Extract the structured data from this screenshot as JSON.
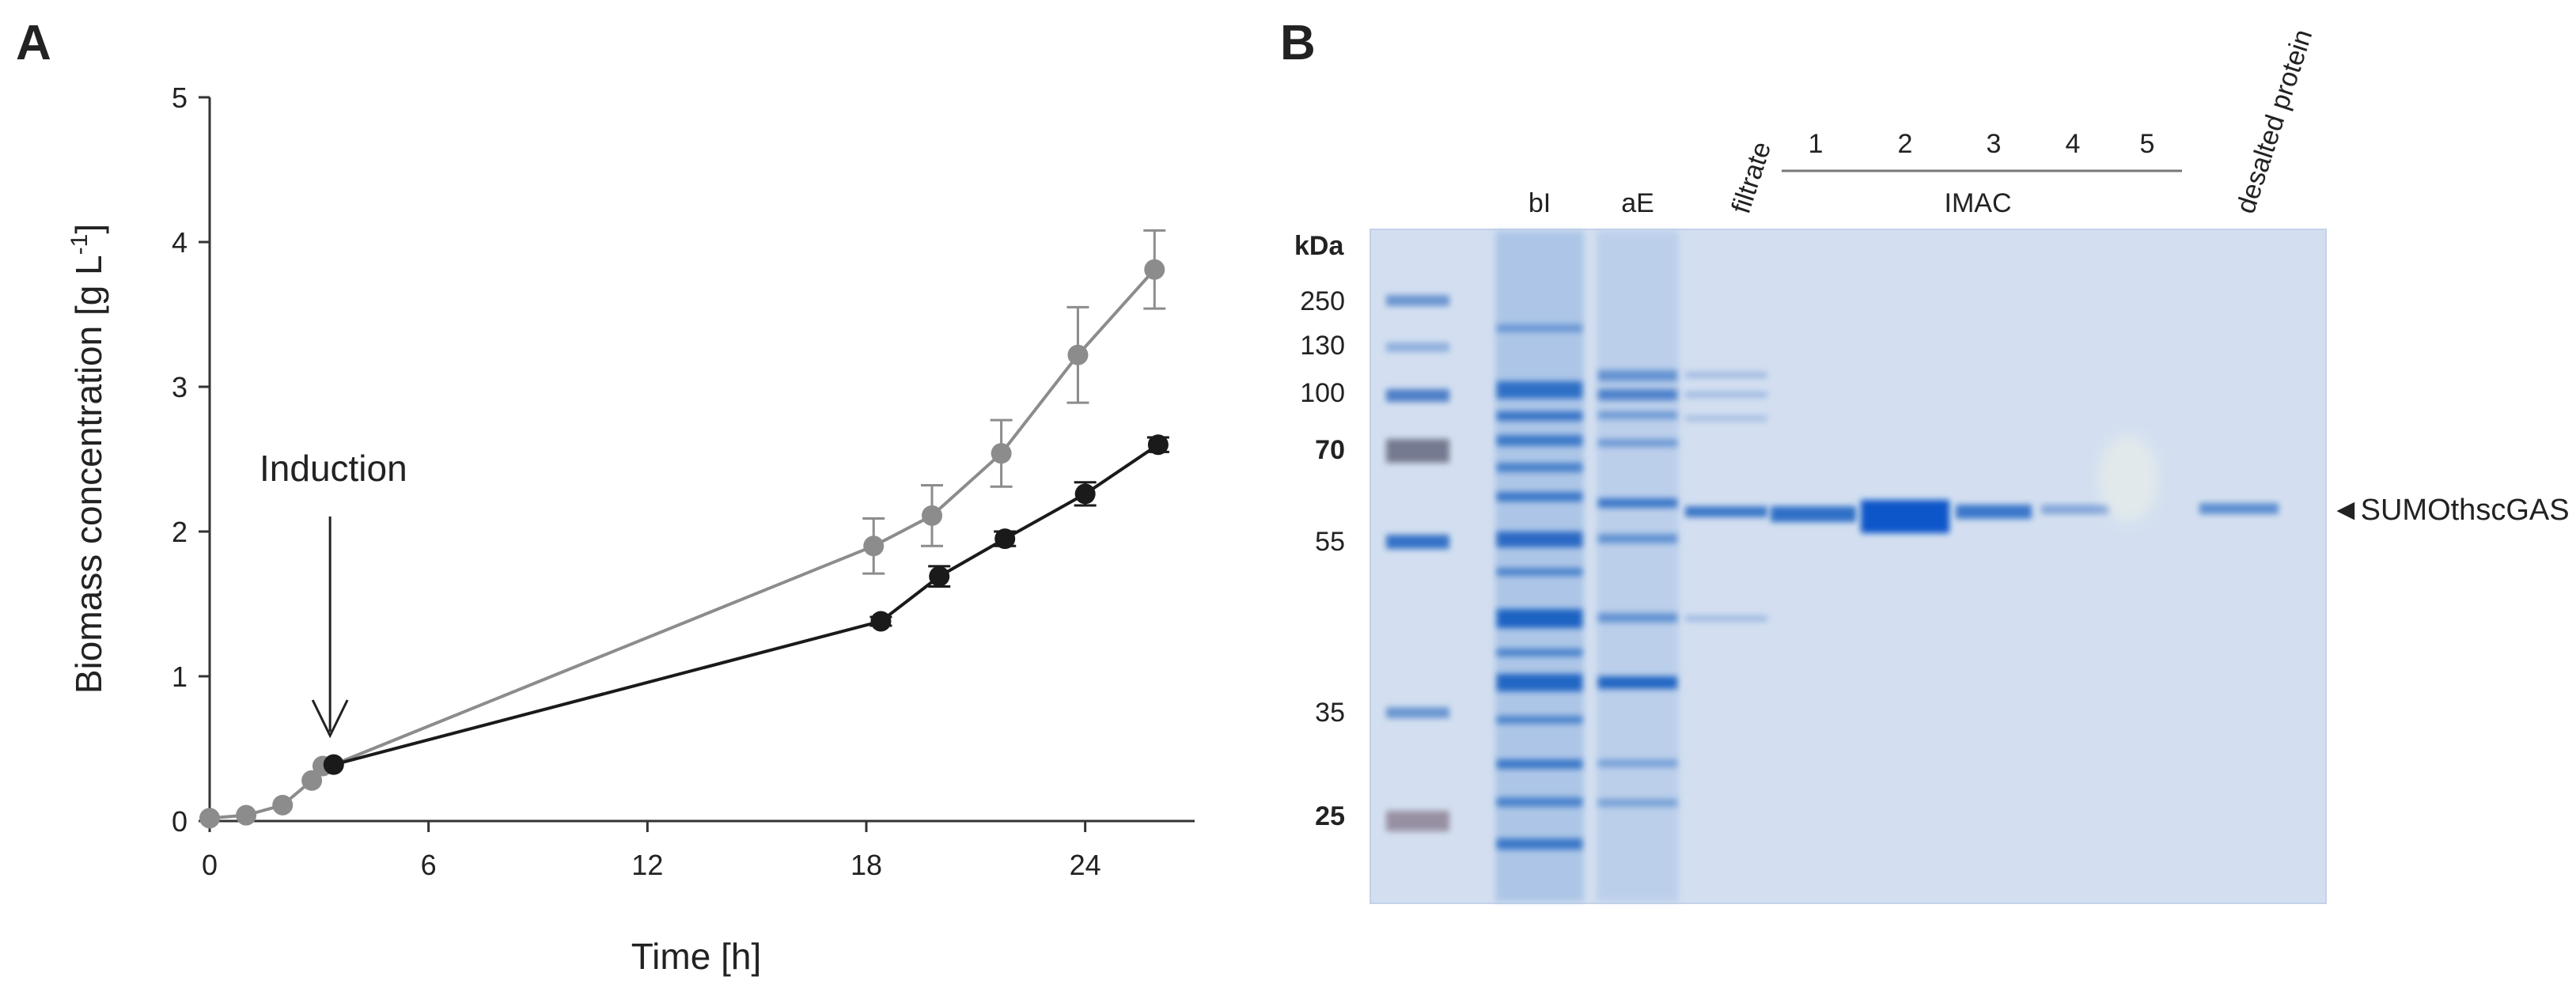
{
  "panel_a": {
    "label": "A",
    "chart_data": {
      "type": "line",
      "title": "",
      "xlabel": "Time [h]",
      "ylabel_main": "Biomass concentration [g L",
      "ylabel_sup": "-1",
      "ylabel_end": "]",
      "xlim": [
        0,
        27
      ],
      "ylim": [
        0,
        5
      ],
      "xticks": [
        0,
        6,
        12,
        18,
        24
      ],
      "xtick_labels": [
        "0",
        "6",
        "12",
        "18",
        "24"
      ],
      "yticks": [
        0,
        1,
        2,
        3,
        4,
        5
      ],
      "ytick_labels": [
        "0",
        "1",
        "2",
        "3",
        "4",
        "5"
      ],
      "series": [
        {
          "name": "gray",
          "color": "#8c8c8c",
          "x": [
            0,
            1,
            2,
            2.8,
            3.1,
            3.4,
            18.2,
            19.8,
            21.7,
            23.8,
            25.9
          ],
          "y": [
            0.02,
            0.04,
            0.11,
            0.28,
            0.38,
            0.39,
            1.9,
            2.11,
            2.54,
            3.22,
            3.81
          ],
          "err": [
            0,
            0,
            0,
            0,
            0,
            0,
            0.19,
            0.21,
            0.23,
            0.33,
            0.27
          ]
        },
        {
          "name": "black",
          "color": "#1a1a1a",
          "x": [
            3.4,
            18.4,
            20.0,
            21.8,
            24.0,
            26.0
          ],
          "y": [
            0.39,
            1.38,
            1.69,
            1.95,
            2.26,
            2.6
          ],
          "err": [
            0,
            0.03,
            0.07,
            0.05,
            0.08,
            0.05
          ]
        }
      ],
      "annotations": [
        {
          "text": "Induction",
          "x": 3.3
        }
      ]
    }
  },
  "panel_b": {
    "label": "B",
    "kda_header": "kDa",
    "markers": [
      {
        "label": "250",
        "bold": false
      },
      {
        "label": "130",
        "bold": false
      },
      {
        "label": "100",
        "bold": false
      },
      {
        "label": "70",
        "bold": true
      },
      {
        "label": "55",
        "bold": false
      },
      {
        "label": "35",
        "bold": false
      },
      {
        "label": "25",
        "bold": true
      }
    ],
    "lanes": {
      "bl": "bI",
      "ae": "aE",
      "filtrate": "filtrate",
      "imac_numbers": [
        "1",
        "2",
        "3",
        "4",
        "5"
      ],
      "imac": "IMAC",
      "desalted": "desalted protein"
    },
    "target_marker": "◄",
    "target_label": "SUMOthscGAS"
  }
}
